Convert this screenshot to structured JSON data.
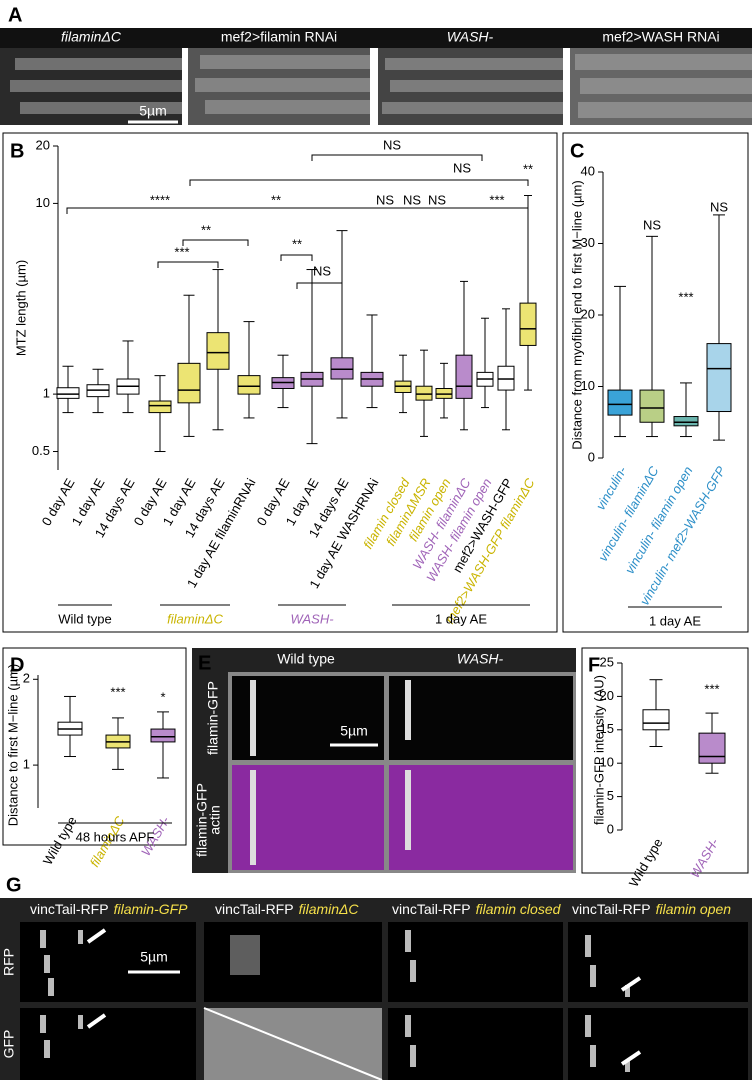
{
  "figure": {
    "panel_letters": [
      "A",
      "B",
      "C",
      "D",
      "E",
      "F",
      "G"
    ]
  },
  "panel_a": {
    "labels": [
      "filaminΔC",
      "mef2>filamin RNAi",
      "WASH-",
      "mef2>WASH RNAi"
    ],
    "label_colors": [
      "#f5e04a",
      "#ffffff",
      "#c38fd6",
      "#ffffff"
    ],
    "scale_bar": "5µm"
  },
  "panel_e": {
    "columns": [
      "Wild type",
      "WASH-"
    ],
    "column_colors": [
      "#ffffff",
      "#c38fd6"
    ],
    "row_labels": [
      "filamin-GFP",
      "filamin-GFP",
      "actin"
    ],
    "row_colors": [
      "#ffffff",
      "#3fbf3f",
      "#c060d0"
    ],
    "scale_bar": "5µm"
  },
  "panel_g": {
    "headers": [
      {
        "prefix": "vincTail-RFP",
        "name": "filamin-GFP"
      },
      {
        "prefix": "vincTail-RFP",
        "name": "filaminΔC"
      },
      {
        "prefix": "vincTail-RFP",
        "name": "filamin closed"
      },
      {
        "prefix": "vincTail-RFP",
        "name": "filamin open"
      }
    ],
    "row_labels": [
      "RFP",
      "GFP"
    ],
    "scale_bar": "5µm"
  },
  "chart_data": [
    {
      "type": "box",
      "ylabel": "MTZ length (µm)",
      "log_scale": true,
      "ylim": [
        0.4,
        20
      ],
      "yticks": [
        0.5,
        1,
        10,
        20
      ],
      "categories": [
        "0 day AE",
        "1 day AE",
        "14 days AE",
        "0 day AE",
        "1 day AE",
        "14 days AE",
        "1 day AE filaminRNAi",
        "0 day AE",
        "1 day AE",
        "14 days AE",
        "1 day AE WASHRNAi",
        "filamin closed",
        "filaminΔMSR",
        "filamin open",
        "WASH- filaminΔC",
        "WASH- filamin open",
        "mef2>WASH-GFP",
        "mef2>WASH-GFP filaminΔC"
      ],
      "label_colors": [
        "#000",
        "#000",
        "#000",
        "#000",
        "#000",
        "#000",
        "#000",
        "#000",
        "#000",
        "#000",
        "#000",
        "#c9b400",
        "#c9b400",
        "#c9b400",
        "#a064b8",
        "#a064b8",
        "#000",
        "#c9b400"
      ],
      "colors": [
        "#ffffff",
        "#ffffff",
        "#ffffff",
        "#ece473",
        "#ece473",
        "#ece473",
        "#ece473",
        "#b98bcb",
        "#b98bcb",
        "#b98bcb",
        "#b98bcb",
        "#ece473",
        "#ece473",
        "#ece473",
        "#b98bcb",
        "#ffffff",
        "#ffffff",
        "#ece473"
      ],
      "boxes": [
        {
          "min": 0.8,
          "q1": 0.95,
          "median": 1.0,
          "q3": 1.08,
          "max": 1.4
        },
        {
          "min": 0.8,
          "q1": 0.97,
          "median": 1.05,
          "q3": 1.12,
          "max": 1.35
        },
        {
          "min": 0.8,
          "q1": 1.0,
          "median": 1.1,
          "q3": 1.2,
          "max": 1.9
        },
        {
          "min": 0.5,
          "q1": 0.8,
          "median": 0.87,
          "q3": 0.92,
          "max": 1.25
        },
        {
          "min": 0.6,
          "q1": 0.9,
          "median": 1.05,
          "q3": 1.45,
          "max": 3.3
        },
        {
          "min": 0.65,
          "q1": 1.35,
          "median": 1.65,
          "q3": 2.1,
          "max": 4.5
        },
        {
          "min": 0.75,
          "q1": 1.0,
          "median": 1.1,
          "q3": 1.25,
          "max": 2.4
        },
        {
          "min": 0.85,
          "q1": 1.07,
          "median": 1.15,
          "q3": 1.22,
          "max": 1.6
        },
        {
          "min": 0.55,
          "q1": 1.1,
          "median": 1.2,
          "q3": 1.3,
          "max": 4.5
        },
        {
          "min": 0.75,
          "q1": 1.2,
          "median": 1.35,
          "q3": 1.55,
          "max": 7.2
        },
        {
          "min": 0.85,
          "q1": 1.1,
          "median": 1.2,
          "q3": 1.3,
          "max": 2.6
        },
        {
          "min": 0.8,
          "q1": 1.02,
          "median": 1.1,
          "q3": 1.17,
          "max": 1.6
        },
        {
          "min": 0.6,
          "q1": 0.93,
          "median": 1.0,
          "q3": 1.1,
          "max": 1.7
        },
        {
          "min": 0.75,
          "q1": 0.95,
          "median": 1.0,
          "q3": 1.07,
          "max": 1.45
        },
        {
          "min": 0.65,
          "q1": 0.95,
          "median": 1.1,
          "q3": 1.6,
          "max": 3.9
        },
        {
          "min": 0.85,
          "q1": 1.1,
          "median": 1.2,
          "q3": 1.3,
          "max": 2.5
        },
        {
          "min": 0.65,
          "q1": 1.05,
          "median": 1.2,
          "q3": 1.4,
          "max": 2.8
        },
        {
          "min": 1.05,
          "q1": 1.8,
          "median": 2.2,
          "q3": 3.0,
          "max": 11
        }
      ],
      "groups": [
        "Wild type",
        "filaminΔC",
        "WASH-",
        "1 day AE"
      ],
      "group_colors": [
        "#000",
        "#c9b400",
        "#a064b8",
        "#000"
      ],
      "annotations": [
        "****",
        "**",
        "NS",
        "NS",
        "**",
        "NS",
        "**",
        "***",
        "**",
        "NS",
        "NS",
        "NS",
        "***"
      ]
    },
    {
      "type": "box",
      "ylabel": "Distance from myofibril end to first M−line (µm)",
      "ylim": [
        0,
        40
      ],
      "yticks": [
        0,
        10,
        20,
        30,
        40
      ],
      "categories": [
        "vinculin-",
        "vinculin- filaminΔC",
        "vinculin- filamin open",
        "vinculin- mef2>WASH-GFP"
      ],
      "label_colors": [
        "#2d8fc8",
        "#2d8fc8",
        "#2d8fc8",
        "#2d8fc8"
      ],
      "colors": [
        "#3aa3d8",
        "#b9cf86",
        "#6ab4ad",
        "#a8d4ea"
      ],
      "boxes": [
        {
          "min": 3,
          "q1": 6,
          "median": 7.5,
          "q3": 9.5,
          "max": 24
        },
        {
          "min": 3,
          "q1": 5,
          "median": 7,
          "q3": 9.5,
          "max": 31
        },
        {
          "min": 3,
          "q1": 4.5,
          "median": 5,
          "q3": 5.8,
          "max": 10.5
        },
        {
          "min": 2.5,
          "q1": 6.5,
          "median": 12.5,
          "q3": 16,
          "max": 34
        }
      ],
      "groups": [
        "1 day AE"
      ],
      "group_colors": [
        "#000"
      ],
      "annotations": [
        "NS",
        "***",
        "NS"
      ]
    },
    {
      "type": "box",
      "ylabel": "Distance to first M−line (µm)",
      "ylim": [
        0.5,
        2.05
      ],
      "yticks": [
        1,
        2
      ],
      "categories": [
        "Wild type",
        "filaminΔC",
        "WASH-"
      ],
      "label_colors": [
        "#000",
        "#c9b400",
        "#a064b8"
      ],
      "colors": [
        "#ffffff",
        "#ece473",
        "#b98bcb"
      ],
      "boxes": [
        {
          "min": 1.1,
          "q1": 1.35,
          "median": 1.42,
          "q3": 1.5,
          "max": 1.8
        },
        {
          "min": 0.95,
          "q1": 1.2,
          "median": 1.27,
          "q3": 1.35,
          "max": 1.55
        },
        {
          "min": 0.85,
          "q1": 1.27,
          "median": 1.33,
          "q3": 1.42,
          "max": 1.62
        }
      ],
      "groups": [
        "48 hours APF"
      ],
      "group_colors": [
        "#000"
      ],
      "annotations": [
        "***",
        "*"
      ]
    },
    {
      "type": "box",
      "ylabel": "filamin-GFP intensity (AU)",
      "ylim": [
        0,
        25
      ],
      "yticks": [
        0,
        5,
        10,
        15,
        20,
        25
      ],
      "categories": [
        "Wild type",
        "WASH-"
      ],
      "label_colors": [
        "#000",
        "#a064b8"
      ],
      "colors": [
        "#ffffff",
        "#b98bcb"
      ],
      "boxes": [
        {
          "min": 12.5,
          "q1": 15,
          "median": 16,
          "q3": 18,
          "max": 22.5
        },
        {
          "min": 8.5,
          "q1": 10,
          "median": 11,
          "q3": 14.5,
          "max": 17.5
        }
      ],
      "groups": [],
      "group_colors": [],
      "annotations": [
        "***"
      ]
    }
  ]
}
